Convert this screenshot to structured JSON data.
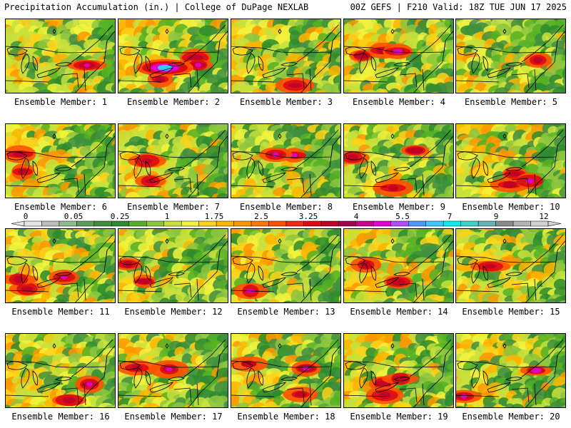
{
  "header": {
    "left": "Precipitation Accumulation (in.) | College of DuPage NEXLAB",
    "right": "00Z GEFS | F210 Valid: 18Z TUE JUN 17 2025"
  },
  "colorbar": {
    "tick_labels": [
      "0",
      "0.05",
      "0.25",
      "1",
      "1.75",
      "2.5",
      "3.25",
      "4",
      "5.5",
      "7",
      "9",
      "12"
    ],
    "colors": [
      "#e6e6e6",
      "#bdbdbd",
      "#8fbc8f",
      "#5c9e5c",
      "#3f8f3f",
      "#2e8b2e",
      "#55b025",
      "#8cc63f",
      "#c8e03c",
      "#f2f23c",
      "#ffd21a",
      "#ffb400",
      "#ff9600",
      "#ff7800",
      "#ff5000",
      "#f02814",
      "#dc0a14",
      "#be0028",
      "#a00050",
      "#c8008c",
      "#e600d2",
      "#b44bff",
      "#5096ff",
      "#3cc8ff",
      "#00f0f0",
      "#3cd2c8",
      "#64b4b4",
      "#8c8c8c",
      "#b4b4b4",
      "#d2d2d2"
    ]
  },
  "panels": [
    {
      "label": "Ensemble Member: 1"
    },
    {
      "label": "Ensemble Member: 2"
    },
    {
      "label": "Ensemble Member: 3"
    },
    {
      "label": "Ensemble Member: 4"
    },
    {
      "label": "Ensemble Member: 5"
    },
    {
      "label": "Ensemble Member: 6"
    },
    {
      "label": "Ensemble Member: 7"
    },
    {
      "label": "Ensemble Member: 8"
    },
    {
      "label": "Ensemble Member: 9"
    },
    {
      "label": "Ensemble Member: 10"
    },
    {
      "label": "Ensemble Member: 11"
    },
    {
      "label": "Ensemble Member: 12"
    },
    {
      "label": "Ensemble Member: 13"
    },
    {
      "label": "Ensemble Member: 14"
    },
    {
      "label": "Ensemble Member: 15"
    },
    {
      "label": "Ensemble Member: 16"
    },
    {
      "label": "Ensemble Member: 17"
    },
    {
      "label": "Ensemble Member: 18"
    },
    {
      "label": "Ensemble Member: 19"
    },
    {
      "label": "Ensemble Member: 20"
    }
  ]
}
